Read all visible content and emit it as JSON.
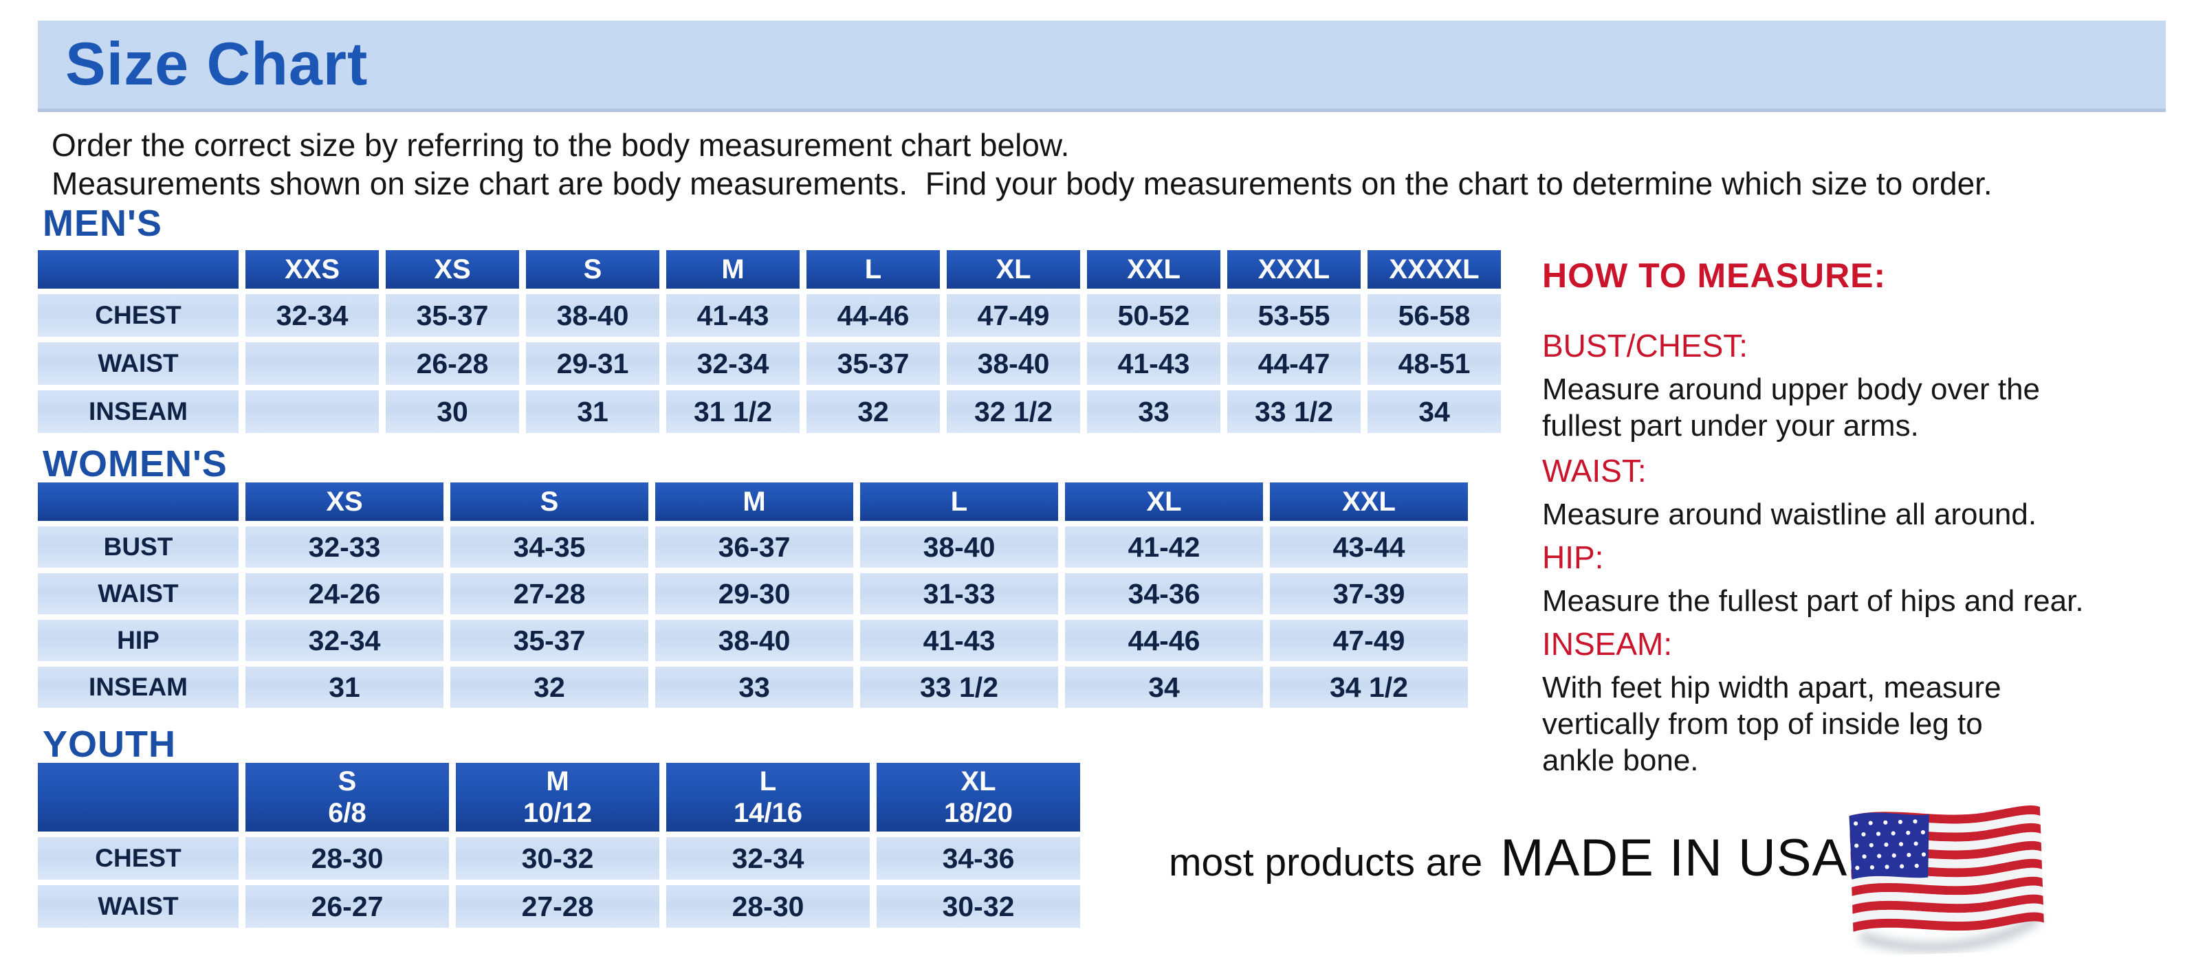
{
  "page": {
    "title": "Size Chart",
    "intro_line1": "Order the correct size by referring to the body measurement chart below.",
    "intro_line2": "Measurements shown on size chart are body measurements.  Find your body measurements on the chart to determine which size to order."
  },
  "colors": {
    "banner_bg": "#c6d9f2",
    "title_blue": "#1d57b5",
    "section_heading_blue": "#1a4fa5",
    "table_header_blue": "#1e50b0",
    "table_cell_blue": "#cddef3",
    "value_text_navy": "#0f2244",
    "accent_red": "#c9142c"
  },
  "tables": {
    "mens": {
      "heading": "MEN'S",
      "columns": [
        "XXS",
        "XS",
        "S",
        "M",
        "L",
        "XL",
        "XXL",
        "XXXL",
        "XXXXL"
      ],
      "rows": [
        {
          "label": "CHEST",
          "values": [
            "32-34",
            "35-37",
            "38-40",
            "41-43",
            "44-46",
            "47-49",
            "50-52",
            "53-55",
            "56-58"
          ]
        },
        {
          "label": "WAIST",
          "values": [
            "",
            "26-28",
            "29-31",
            "32-34",
            "35-37",
            "38-40",
            "41-43",
            "44-47",
            "48-51"
          ]
        },
        {
          "label": "INSEAM",
          "values": [
            "",
            "30",
            "31",
            "31 1/2",
            "32",
            "32 1/2",
            "33",
            "33 1/2",
            "34"
          ]
        }
      ]
    },
    "womens": {
      "heading": "WOMEN'S",
      "columns": [
        "XS",
        "S",
        "M",
        "L",
        "XL",
        "XXL"
      ],
      "rows": [
        {
          "label": "BUST",
          "values": [
            "32-33",
            "34-35",
            "36-37",
            "38-40",
            "41-42",
            "43-44"
          ]
        },
        {
          "label": "WAIST",
          "values": [
            "24-26",
            "27-28",
            "29-30",
            "31-33",
            "34-36",
            "37-39"
          ]
        },
        {
          "label": "HIP",
          "values": [
            "32-34",
            "35-37",
            "38-40",
            "41-43",
            "44-46",
            "47-49"
          ]
        },
        {
          "label": "INSEAM",
          "values": [
            "31",
            "32",
            "33",
            "33 1/2",
            "34",
            "34 1/2"
          ]
        }
      ]
    },
    "youth": {
      "heading": "YOUTH",
      "columns": [
        "S\n6/8",
        "M\n10/12",
        "L\n14/16",
        "XL\n18/20"
      ],
      "rows": [
        {
          "label": "CHEST",
          "values": [
            "28-30",
            "30-32",
            "32-34",
            "34-36"
          ]
        },
        {
          "label": "WAIST",
          "values": [
            "26-27",
            "27-28",
            "28-30",
            "30-32"
          ]
        }
      ]
    }
  },
  "how_to_measure": {
    "heading": "HOW TO MEASURE:",
    "sections": [
      {
        "label": "BUST/CHEST:",
        "text": "Measure around upper body over the\nfullest part under your arms."
      },
      {
        "label": "WAIST:",
        "text": "Measure around waistline all around."
      },
      {
        "label": "HIP:",
        "text": "Measure the fullest part of hips and rear."
      },
      {
        "label": "INSEAM:",
        "text": "With feet hip width apart, measure\nvertically from top of inside leg to\nankle bone."
      }
    ]
  },
  "footer": {
    "made_in_prefix": "most products are",
    "made_in": "MADE IN USA",
    "flag_icon": "usa-flag-icon"
  }
}
